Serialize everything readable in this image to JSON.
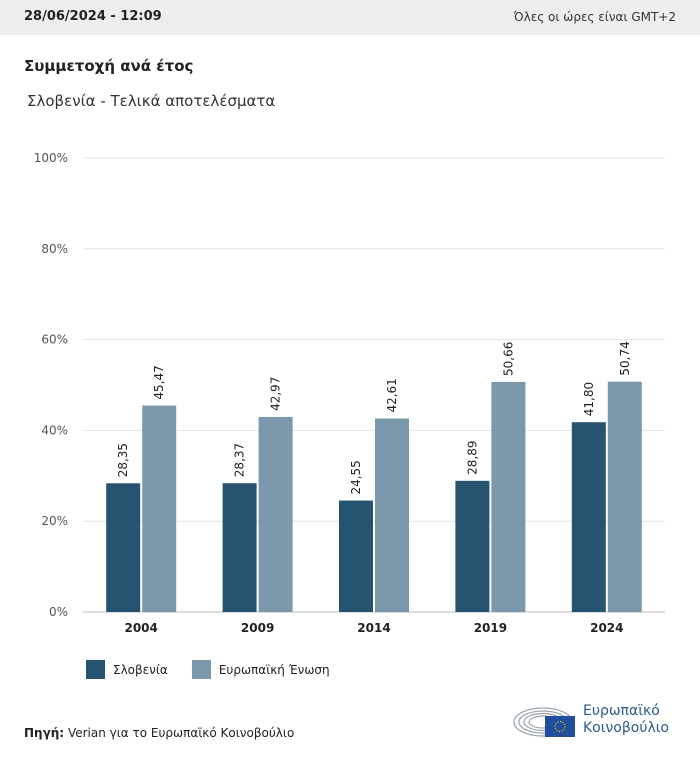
{
  "header": {
    "datetime": "28/06/2024 - 12:09",
    "timezone_note": "Όλες οι ώρες είναι GMT+2"
  },
  "title": "Συμμετοχή ανά έτος",
  "subtitle": "Σλοβενία - Τελικά αποτελέσματα",
  "chart_data": {
    "type": "bar",
    "categories": [
      "2004",
      "2009",
      "2014",
      "2019",
      "2024"
    ],
    "series": [
      {
        "name": "Σλοβενία",
        "color": "#26536f",
        "values": [
          28.35,
          28.37,
          24.55,
          28.89,
          41.8
        ],
        "labels": [
          "28,35",
          "28,37",
          "24,55",
          "28,89",
          "41,80"
        ]
      },
      {
        "name": "Ευρωπαϊκή Ένωση",
        "color": "#7b98ad",
        "values": [
          45.47,
          42.97,
          42.61,
          50.66,
          50.74
        ],
        "labels": [
          "45,47",
          "42,97",
          "42,61",
          "50,66",
          "50,74"
        ]
      }
    ],
    "ylim": [
      0,
      100
    ],
    "yticks": [
      "0%",
      "20%",
      "40%",
      "60%",
      "80%",
      "100%"
    ],
    "grid": true,
    "legend": "bottom-left"
  },
  "footer": {
    "source_label": "Πηγή:",
    "source_text": "Verian για το Ευρωπαϊκό Κοινοβούλιο",
    "logo_line1": "Ευρωπαϊκό",
    "logo_line2": "Κοινοβούλιο"
  }
}
